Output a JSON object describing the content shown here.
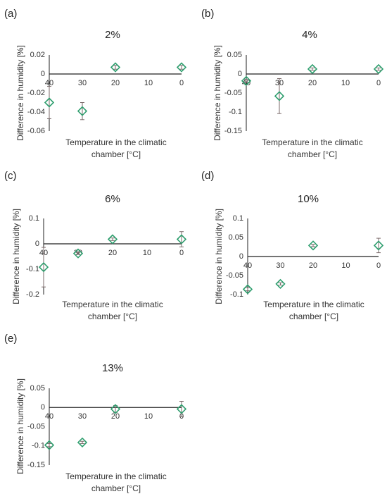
{
  "chart_data": [
    {
      "type": "scatter",
      "panel": "(a)",
      "title": "2%",
      "xlabel": [
        "Temperature in the climatic",
        "chamber [°C]"
      ],
      "ylabel": "Difference in humidity [%]",
      "x_ticks": [
        40,
        30,
        20,
        10,
        0
      ],
      "xlim": [
        40,
        0
      ],
      "y_ticks": [
        0.02,
        0,
        -0.02,
        -0.04,
        -0.06
      ],
      "y_tick_labels": [
        "0.02",
        "0",
        "-0.02",
        "-0.04",
        "-0.06"
      ],
      "ylim": [
        -0.06,
        0.02
      ],
      "points": [
        {
          "x": 40,
          "y": -0.03,
          "err": 0.017
        },
        {
          "x": 30,
          "y": -0.039,
          "err": 0.009
        },
        {
          "x": 20,
          "y": 0.007,
          "err": 0.002
        },
        {
          "x": 0,
          "y": 0.007,
          "err": 0.002
        }
      ]
    },
    {
      "type": "scatter",
      "panel": "(b)",
      "title": "4%",
      "xlabel": [
        "Temperature in the climatic",
        "chamber [°C]"
      ],
      "ylabel": "Difference in humidity [%]",
      "x_ticks": [
        40,
        30,
        20,
        10,
        0
      ],
      "xlim": [
        40,
        0
      ],
      "y_ticks": [
        0.05,
        0,
        -0.05,
        -0.1,
        -0.15
      ],
      "y_tick_labels": [
        "0.05",
        "0",
        "-0.05",
        "-0.1",
        "-0.15"
      ],
      "ylim": [
        -0.15,
        0.05
      ],
      "points": [
        {
          "x": 40,
          "y": -0.018,
          "err": 0.004
        },
        {
          "x": 30,
          "y": -0.058,
          "err": 0.046
        },
        {
          "x": 20,
          "y": 0.013,
          "err": 0.003
        },
        {
          "x": 0,
          "y": 0.013,
          "err": 0.003
        }
      ]
    },
    {
      "type": "scatter",
      "panel": "(c)",
      "title": "6%",
      "xlabel": [
        "Temperature in the climatic",
        "chamber [°C]"
      ],
      "ylabel": "Difference in humidity [%]",
      "x_ticks": [
        40,
        30,
        20,
        10,
        0
      ],
      "xlim": [
        40,
        0
      ],
      "y_ticks": [
        0.1,
        0,
        -0.1,
        -0.2
      ],
      "y_tick_labels": [
        "0.1",
        "0",
        "-0.1",
        "-0.2"
      ],
      "ylim": [
        -0.2,
        0.1
      ],
      "points": [
        {
          "x": 40,
          "y": -0.092,
          "err": 0.078
        },
        {
          "x": 30,
          "y": -0.038,
          "err": 0.004
        },
        {
          "x": 20,
          "y": 0.018,
          "err": 0.005
        },
        {
          "x": 0,
          "y": 0.018,
          "err": 0.03
        }
      ]
    },
    {
      "type": "scatter",
      "panel": "(d)",
      "title": "10%",
      "xlabel": [
        "Temperature in the climatic",
        "chamber [°C]"
      ],
      "ylabel": "Difference in humidity [%]",
      "x_ticks": [
        40,
        30,
        20,
        10,
        0
      ],
      "xlim": [
        40,
        0
      ],
      "y_ticks": [
        0.1,
        0.05,
        0,
        -0.05,
        -0.1
      ],
      "y_tick_labels": [
        "0.1",
        "0.05",
        "0",
        "-0.05",
        "-0.1"
      ],
      "ylim": [
        -0.1,
        0.1
      ],
      "points": [
        {
          "x": 40,
          "y": -0.086,
          "err": 0.004
        },
        {
          "x": 30,
          "y": -0.072,
          "err": 0.003
        },
        {
          "x": 20,
          "y": 0.029,
          "err": 0.003
        },
        {
          "x": 0,
          "y": 0.029,
          "err": 0.019
        }
      ]
    },
    {
      "type": "scatter",
      "panel": "(e)",
      "title": "13%",
      "xlabel": [
        "Temperature in the climatic",
        "chamber [°C]"
      ],
      "ylabel": "Difference in humidity [%]",
      "x_ticks": [
        40,
        30,
        20,
        10,
        0
      ],
      "xlim": [
        40,
        0
      ],
      "y_ticks": [
        0.05,
        0,
        -0.05,
        -0.1,
        -0.15
      ],
      "y_tick_labels": [
        "0.05",
        "0",
        "-0.05",
        "-0.1",
        "-0.15"
      ],
      "ylim": [
        -0.15,
        0.05
      ],
      "points": [
        {
          "x": 40,
          "y": -0.098,
          "err": 0.004
        },
        {
          "x": 30,
          "y": -0.091,
          "err": 0.003
        },
        {
          "x": 20,
          "y": -0.004,
          "err": 0.009
        },
        {
          "x": 0,
          "y": -0.004,
          "err": 0.02
        }
      ]
    }
  ],
  "style": {
    "marker_color": "#2e9e6e",
    "error_color": "#7a6a6a",
    "axis_color": "#222222"
  }
}
